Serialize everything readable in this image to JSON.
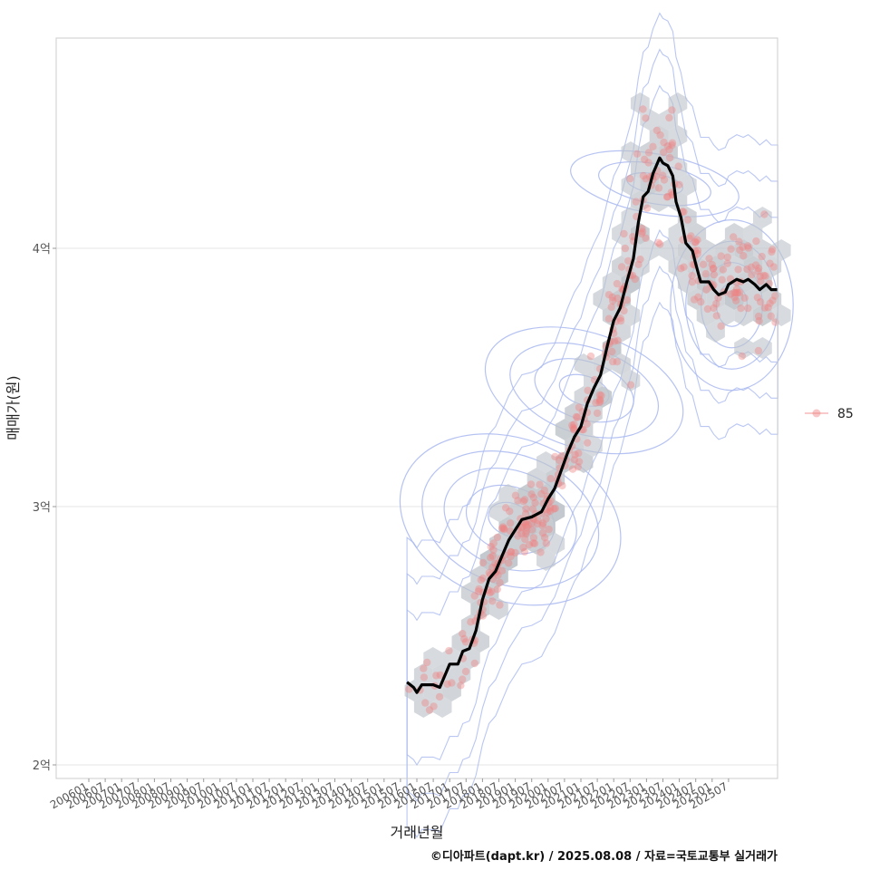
{
  "chart_data": {
    "type": "scatter",
    "xlabel": "거래년월",
    "ylabel": "매매가(원)",
    "x_ticks": [
      "200601",
      "200607",
      "200701",
      "200707",
      "200801",
      "200807",
      "200901",
      "200907",
      "201001",
      "201007",
      "201101",
      "201107",
      "201201",
      "201207",
      "201301",
      "201307",
      "201401",
      "201407",
      "201501",
      "201507",
      "201601",
      "201607",
      "201701",
      "201707",
      "201801",
      "201807",
      "201901",
      "201907",
      "202001",
      "202007",
      "202101",
      "202107",
      "202201",
      "202207",
      "202301",
      "202307",
      "202401",
      "202407",
      "202501",
      "202507"
    ],
    "y_ticks": [
      {
        "value": 2.0,
        "label": "2억"
      },
      {
        "value": 3.0,
        "label": "3억"
      },
      {
        "value": 4.0,
        "label": "4억"
      }
    ],
    "ylim": [
      1.96,
      4.82
    ],
    "xlim_ticks": [
      -1.7,
      41.5
    ],
    "grid": true,
    "legend_position": "right",
    "series": [
      {
        "name": "85",
        "color": "#f08080",
        "trend": [
          {
            "t": 19.4,
            "y": 2.32
          },
          {
            "t": 19.8,
            "y": 2.3
          },
          {
            "t": 20.0,
            "y": 2.28
          },
          {
            "t": 20.3,
            "y": 2.31
          },
          {
            "t": 21.0,
            "y": 2.31
          },
          {
            "t": 21.4,
            "y": 2.3
          },
          {
            "t": 21.8,
            "y": 2.36
          },
          {
            "t": 22.0,
            "y": 2.39
          },
          {
            "t": 22.5,
            "y": 2.39
          },
          {
            "t": 22.8,
            "y": 2.44
          },
          {
            "t": 23.2,
            "y": 2.45
          },
          {
            "t": 23.6,
            "y": 2.52
          },
          {
            "t": 24.0,
            "y": 2.64
          },
          {
            "t": 24.4,
            "y": 2.72
          },
          {
            "t": 24.8,
            "y": 2.75
          },
          {
            "t": 25.2,
            "y": 2.81
          },
          {
            "t": 25.6,
            "y": 2.87
          },
          {
            "t": 26.0,
            "y": 2.91
          },
          {
            "t": 26.4,
            "y": 2.95
          },
          {
            "t": 27.0,
            "y": 2.96
          },
          {
            "t": 27.6,
            "y": 2.98
          },
          {
            "t": 28.0,
            "y": 3.03
          },
          {
            "t": 28.4,
            "y": 3.07
          },
          {
            "t": 28.8,
            "y": 3.14
          },
          {
            "t": 29.2,
            "y": 3.21
          },
          {
            "t": 29.6,
            "y": 3.27
          },
          {
            "t": 30.0,
            "y": 3.31
          },
          {
            "t": 30.4,
            "y": 3.4
          },
          {
            "t": 30.8,
            "y": 3.46
          },
          {
            "t": 31.2,
            "y": 3.51
          },
          {
            "t": 31.6,
            "y": 3.62
          },
          {
            "t": 32.0,
            "y": 3.72
          },
          {
            "t": 32.4,
            "y": 3.77
          },
          {
            "t": 32.8,
            "y": 3.87
          },
          {
            "t": 33.2,
            "y": 3.96
          },
          {
            "t": 33.5,
            "y": 4.1
          },
          {
            "t": 33.8,
            "y": 4.2
          },
          {
            "t": 34.1,
            "y": 4.22
          },
          {
            "t": 34.4,
            "y": 4.29
          },
          {
            "t": 34.8,
            "y": 4.35
          },
          {
            "t": 35.0,
            "y": 4.33
          },
          {
            "t": 35.3,
            "y": 4.32
          },
          {
            "t": 35.6,
            "y": 4.28
          },
          {
            "t": 35.8,
            "y": 4.18
          },
          {
            "t": 36.1,
            "y": 4.12
          },
          {
            "t": 36.4,
            "y": 4.02
          },
          {
            "t": 36.8,
            "y": 3.99
          },
          {
            "t": 37.0,
            "y": 3.94
          },
          {
            "t": 37.3,
            "y": 3.87
          },
          {
            "t": 37.8,
            "y": 3.87
          },
          {
            "t": 38.1,
            "y": 3.84
          },
          {
            "t": 38.4,
            "y": 3.82
          },
          {
            "t": 38.8,
            "y": 3.83
          },
          {
            "t": 39.0,
            "y": 3.86
          },
          {
            "t": 39.5,
            "y": 3.88
          },
          {
            "t": 39.9,
            "y": 3.87
          },
          {
            "t": 40.2,
            "y": 3.88
          },
          {
            "t": 40.6,
            "y": 3.86
          },
          {
            "t": 40.9,
            "y": 3.84
          },
          {
            "t": 41.3,
            "y": 3.86
          },
          {
            "t": 41.6,
            "y": 3.84
          },
          {
            "t": 42.0,
            "y": 3.84
          }
        ]
      }
    ]
  },
  "caption": "©디아파트(dapt.kr) / 2025.08.08 / 자료=국토교통부 실거래가",
  "colors": {
    "hex_fill": "#bdc3c9",
    "contour": "#a9b9f0",
    "trend": "#000000",
    "point": "#f08080",
    "grid": "#e5e5e5",
    "panel_border": "#cccccc"
  }
}
